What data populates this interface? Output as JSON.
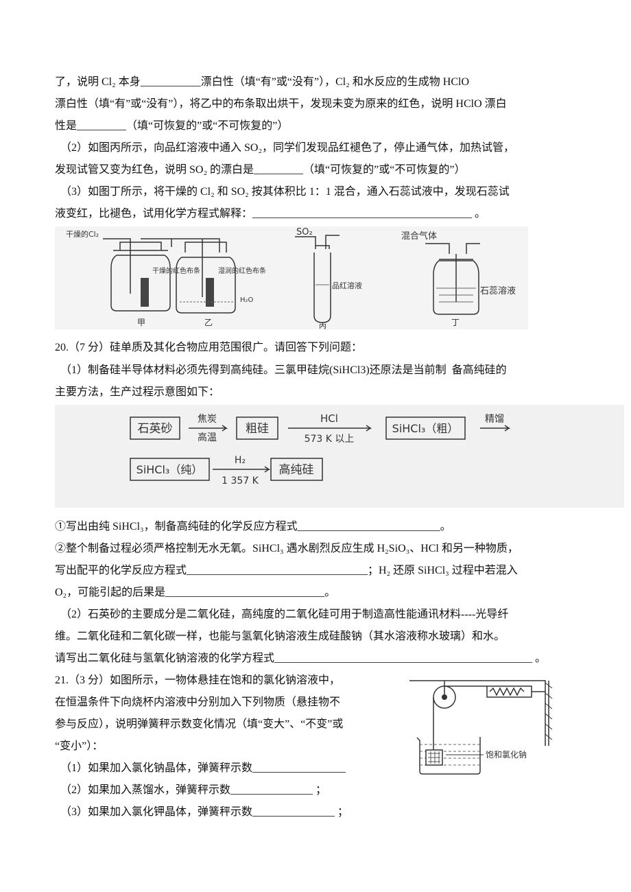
{
  "lines": [
    "了，说明 Cl₂ 本身___________漂白性（填“有”或“没有”），Cl₂ 和水反应的生成物 HClO",
    "漂白性（填“有”或“没有”），将乙中的布条取出烘干，发现未变为原来的红色，说明 HClO 漂白",
    "性是_________（填“可恢复的”或“不可恢复的”）",
    "（2）如图丙所示，向品红溶液中通入 SO₂，同学们发现品红褪色了，停止通气体，加热试管，",
    "发现试管又变为红色，说明 SO₂ 的漂白是_________（填“可恢复的”或“不可恢复的”）",
    "（3）如图丁所示，将干燥的 Cl₂ 和 SO₂ 按其体积比 1：1 混合，通入石蕊试液中，发现石蕊试",
    "液变红，比褪色，试用化学方程式解释：________________________________________ 。",
    "20.（7 分）硅单质及其化合物应用范围很广。请回答下列问题：",
    "（1）制备硅半导体材料必须先得到高纯硅。三氯甲硅烷(SiHCl3)还原法是当前制  备高纯硅的",
    "主要方法，生产过程示意图如下：",
    "①写出由纯 SiHCl₃，制备高纯硅的化学反应方程式__________________________。",
    "②整个制备过程必须严格控制无水无氧。SiHCl₃ 遇水剧烈反应生成 H₂SiO₃、HCl 和另一种物质，",
    "写出配平的化学反应方程式_________________________________；H₂ 还原 SiHCl₃ 过程中若混入",
    "O₂，可能引起的后果是_____________________________。",
    "（2）石英砂的主要成分是二氧化硅，高纯度的二氧化硅可用于制造高性能通讯材料----光导纤",
    "维。二氧化硅和二氧化碳一样，也能与氢氧化钠溶液生成硅酸钠（其水溶液称水玻璃）和水。",
    "请写出二氧化硅与氢氧化钠溶液的化学方程式_______________________________________________ 。",
    "21.（3 分）如图所示，一物体悬挂在饱和的氯化钠溶液中，",
    "在恒温条件下向烧杯内溶液中分别加入下列物质（悬挂物不",
    "参与反应），说明弹簧秤示数变化情况（填“变大”、“不变”或",
    "“变小”）：",
    "（1）如果加入氯化钠晶体，弹簧秤示数_________________",
    "（2）如果加入蒸馏水，弹簧秤示数_______________ ；",
    "（3）如果加入氯化钾晶体，弹簧秤示数_______________ ；"
  ],
  "figure_gas": {
    "dry_cl2": "干燥的Cl₂",
    "dry_cloth": "干燥的红色布条",
    "wet_cloth": "湿润的红色布条",
    "water": "H₂O",
    "jia": "甲",
    "yi": "乙",
    "so2": "SO₂",
    "magenta": "品红溶液",
    "bing": "丙",
    "mixed_gas": "混合气体",
    "litmus": "石蕊溶液",
    "ding": "丁"
  },
  "figure_flow": {
    "quartz": "石英砂",
    "coke": "焦炭",
    "high_temp": "高温",
    "crude_si": "粗硅",
    "hcl": "HCl",
    "temp1": "573 K 以上",
    "crude_sihcl3": "SiHCl₃（粗）",
    "distill": "精馏",
    "pure_sihcl3": "SiHCl₃（纯）",
    "h2": "H₂",
    "temp2": "1 357 K",
    "pure_si": "高纯硅"
  },
  "figure_spring": {
    "solution": "饱和氯化钠"
  }
}
